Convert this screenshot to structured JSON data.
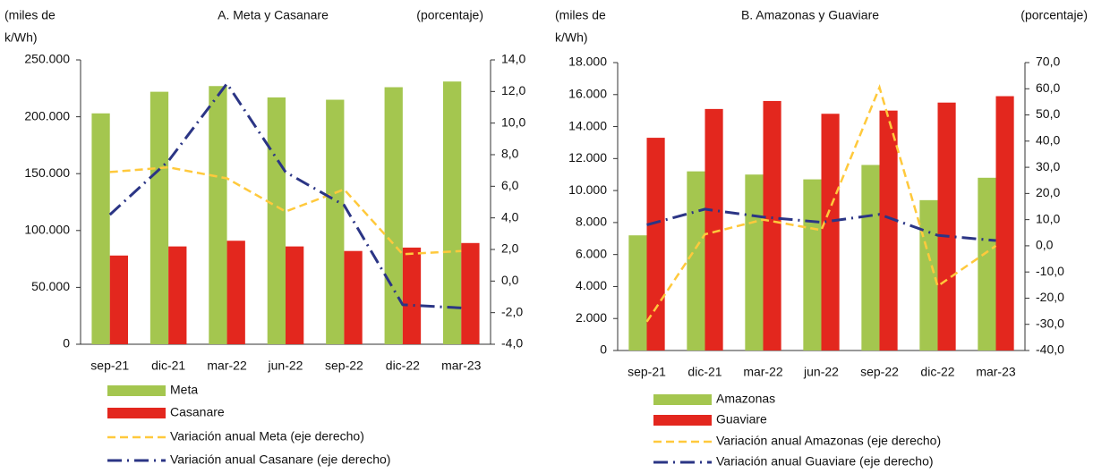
{
  "chart_data": [
    {
      "type": "bar",
      "title": "A. Meta y Casanare",
      "ylabel": [
        "(miles de",
        "k/Wh)"
      ],
      "y2label": "(porcentaje)",
      "categories": [
        "sep-21",
        "dic-21",
        "mar-22",
        "jun-22",
        "sep-22",
        "dic-22",
        "mar-23"
      ],
      "ylim": [
        0,
        250000
      ],
      "yticks": [
        0,
        {
          "value": 50000,
          "label": "50.000"
        },
        {
          "value": 100000,
          "label": "100.000"
        },
        {
          "value": 150000,
          "label": "150.000"
        },
        {
          "value": 200000,
          "label": "200.000"
        },
        {
          "value": 250000,
          "label": "250.000"
        }
      ],
      "y2lim": [
        -4,
        14
      ],
      "y2ticks": [
        {
          "value": -4,
          "label": "-4,0"
        },
        {
          "value": -2,
          "label": "-2,0"
        },
        {
          "value": 0,
          "label": "0,0"
        },
        {
          "value": 2,
          "label": "2,0"
        },
        {
          "value": 4,
          "label": "4,0"
        },
        {
          "value": 6,
          "label": "6,0"
        },
        {
          "value": 8,
          "label": "8,0"
        },
        {
          "value": 10,
          "label": "10,0"
        },
        {
          "value": 12,
          "label": "12,0"
        },
        {
          "value": 14,
          "label": "14,0"
        }
      ],
      "series": [
        {
          "name": "Meta",
          "type": "bar",
          "color": "#a4c64f",
          "values": [
            203000,
            222000,
            227000,
            217000,
            215000,
            226000,
            231000
          ]
        },
        {
          "name": "Casanare",
          "type": "bar",
          "color": "#e3271e",
          "values": [
            78000,
            86000,
            91000,
            86000,
            82000,
            85000,
            89000
          ]
        },
        {
          "name": "Variación anual Meta (eje derecho)",
          "type": "line",
          "axis": "y2",
          "style": "dashed",
          "color": "#ffc93c",
          "values": [
            6.9,
            7.2,
            6.5,
            4.4,
            5.8,
            1.7,
            1.9
          ]
        },
        {
          "name": "Variación anual Casanare (eje derecho)",
          "type": "line",
          "axis": "y2",
          "style": "dash-dot",
          "color": "#2b3585",
          "values": [
            4.2,
            7.6,
            12.5,
            6.9,
            4.8,
            -1.5,
            -1.7
          ]
        }
      ]
    },
    {
      "type": "bar",
      "title": "B. Amazonas y Guaviare",
      "ylabel": [
        "(miles de",
        "k/Wh)"
      ],
      "y2label": "(porcentaje)",
      "categories": [
        "sep-21",
        "dic-21",
        "mar-22",
        "jun-22",
        "sep-22",
        "dic-22",
        "mar-23"
      ],
      "ylim": [
        0,
        18000
      ],
      "yticks": [
        0,
        {
          "value": 2000,
          "label": "2.000"
        },
        {
          "value": 4000,
          "label": "4.000"
        },
        {
          "value": 6000,
          "label": "6.000"
        },
        {
          "value": 8000,
          "label": "8.000"
        },
        {
          "value": 10000,
          "label": "10.000"
        },
        {
          "value": 12000,
          "label": "12.000"
        },
        {
          "value": 14000,
          "label": "14.000"
        },
        {
          "value": 16000,
          "label": "16.000"
        },
        {
          "value": 18000,
          "label": "18.000"
        }
      ],
      "y2lim": [
        -40,
        70
      ],
      "y2ticks": [
        {
          "value": -40,
          "label": "-40,0"
        },
        {
          "value": -30,
          "label": "-30,0"
        },
        {
          "value": -20,
          "label": "-20,0"
        },
        {
          "value": -10,
          "label": "-10,0"
        },
        {
          "value": 0,
          "label": "0,0"
        },
        {
          "value": 10,
          "label": "10,0"
        },
        {
          "value": 20,
          "label": "20,0"
        },
        {
          "value": 30,
          "label": "30,0"
        },
        {
          "value": 40,
          "label": "40,0"
        },
        {
          "value": 50,
          "label": "50,0"
        },
        {
          "value": 60,
          "label": "60,0"
        },
        {
          "value": 70,
          "label": "70,0"
        }
      ],
      "series": [
        {
          "name": "Amazonas",
          "type": "bar",
          "color": "#a4c64f",
          "values": [
            7200,
            11200,
            11000,
            10700,
            11600,
            9400,
            10800
          ]
        },
        {
          "name": "Guaviare",
          "type": "bar",
          "color": "#e3271e",
          "values": [
            13300,
            15100,
            15600,
            14800,
            15000,
            15500,
            15900
          ]
        },
        {
          "name": "Variación anual Amazonas (eje derecho)",
          "type": "line",
          "axis": "y2",
          "style": "dashed",
          "color": "#ffc93c",
          "values": [
            -29,
            4.4,
            10,
            6,
            60.5,
            -15.4,
            0
          ]
        },
        {
          "name": "Variación anual Guaviare (eje derecho)",
          "type": "line",
          "axis": "y2",
          "style": "dash-dot",
          "color": "#2b3585",
          "values": [
            8,
            14,
            11,
            9,
            12,
            4,
            2
          ]
        }
      ]
    }
  ]
}
